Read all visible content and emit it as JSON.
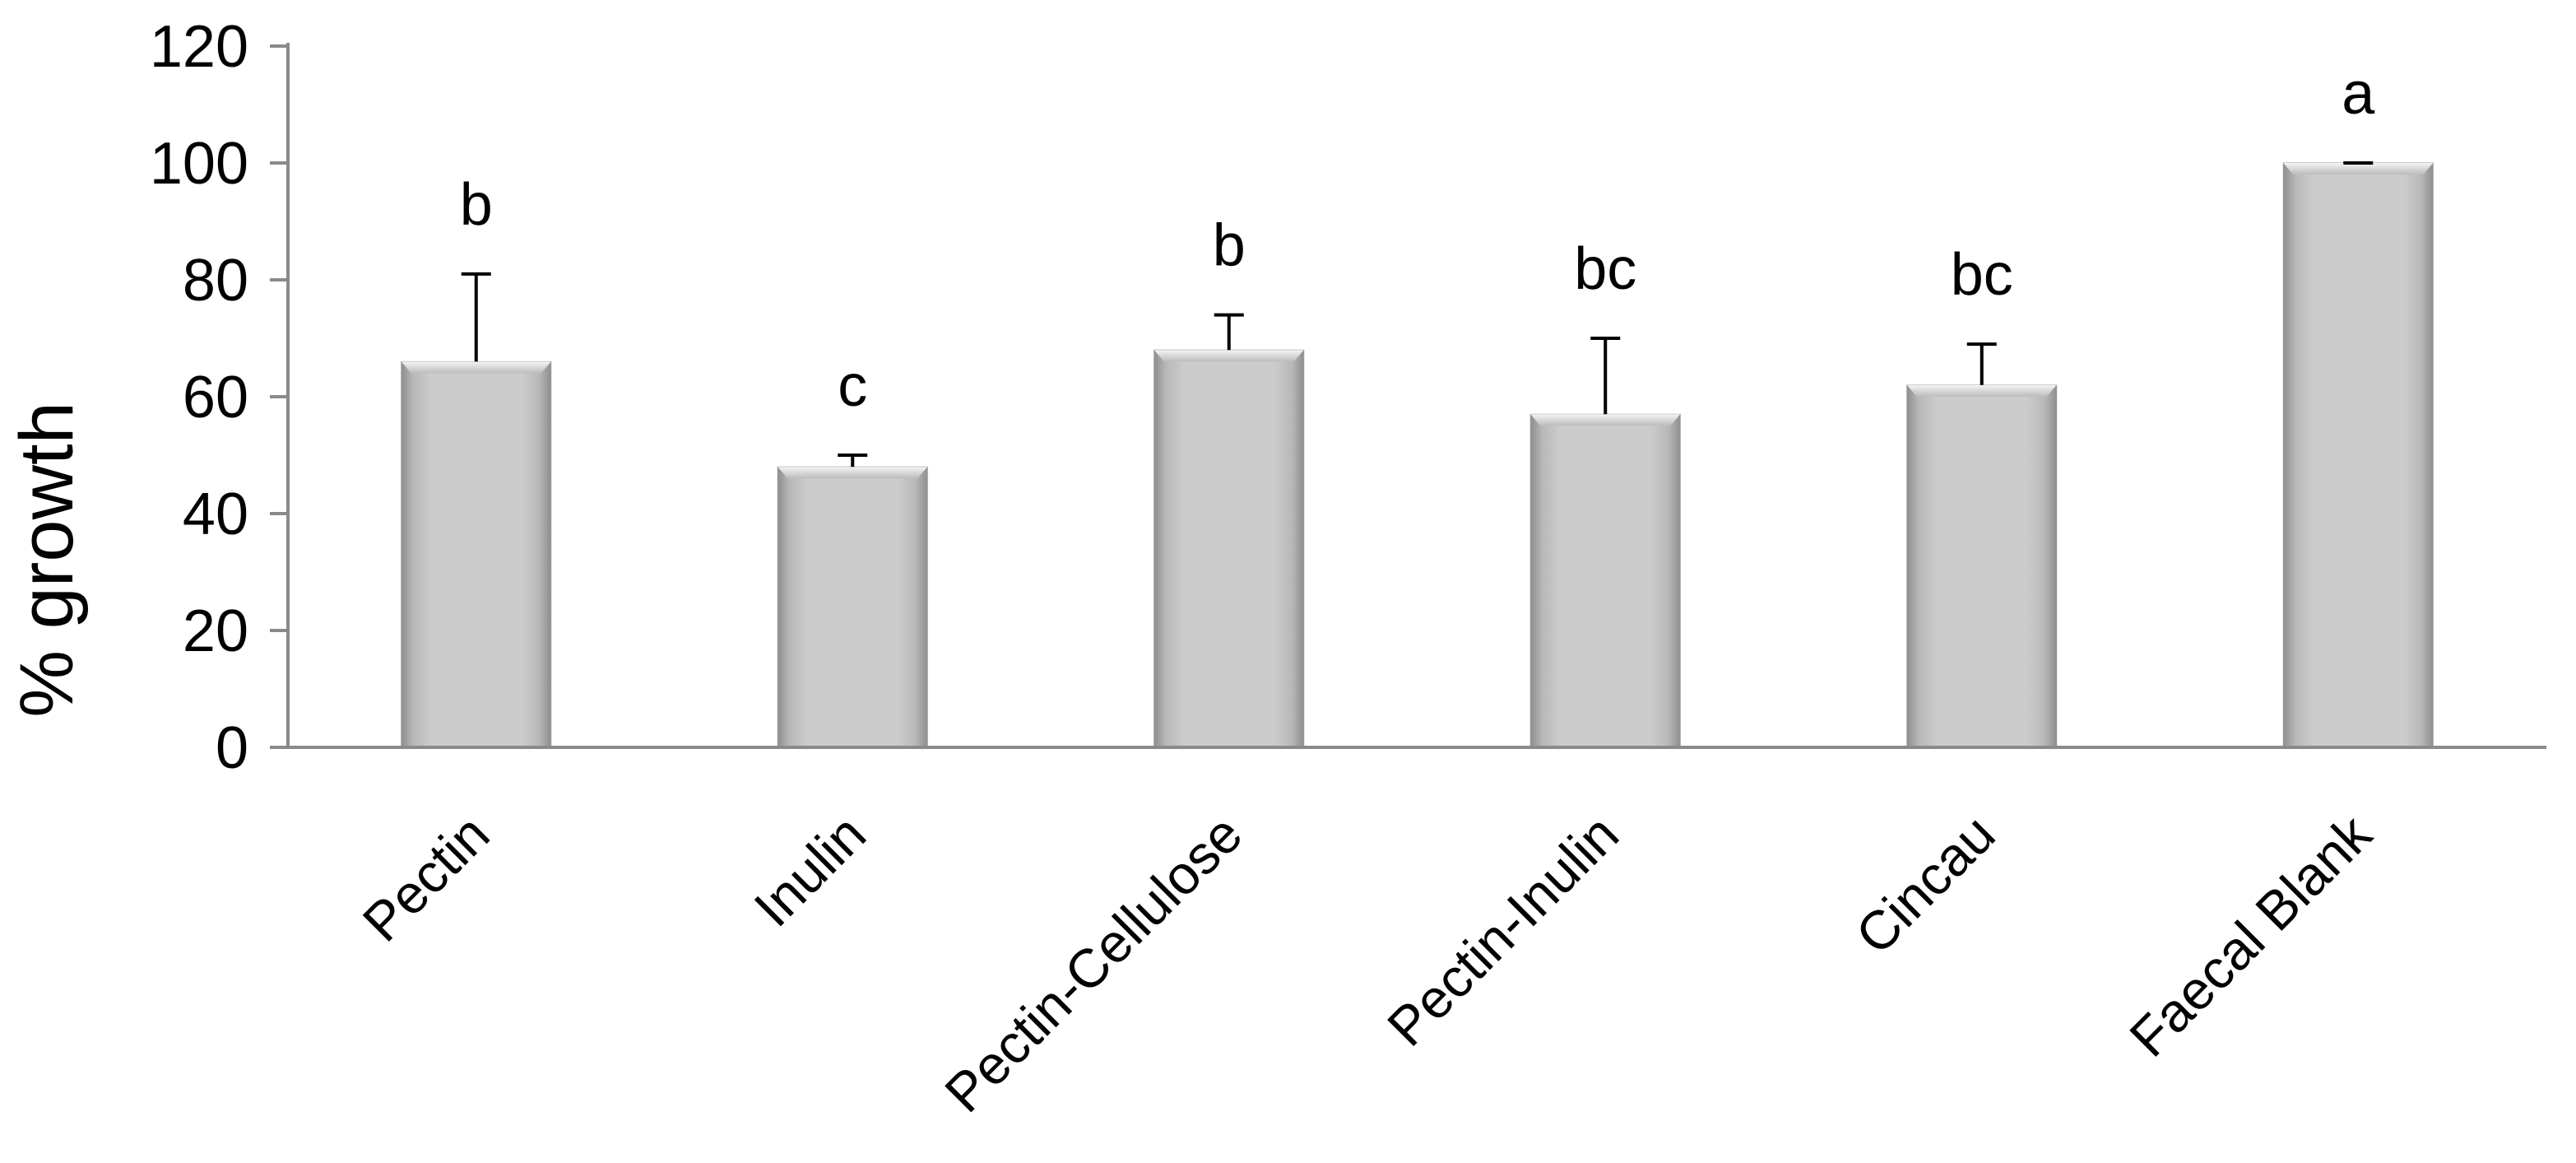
{
  "chart_data": {
    "type": "bar",
    "title": "",
    "xlabel": "",
    "ylabel": "% growth",
    "ylim": [
      0,
      120
    ],
    "yticks": [
      0,
      20,
      40,
      60,
      80,
      100,
      120
    ],
    "ytick_labels": [
      "0",
      "20",
      "40",
      "60",
      "80",
      "100",
      "120"
    ],
    "grid": false,
    "legend": "none",
    "categories": [
      "Pectin",
      "Inulin",
      "Pectin-Cellulose",
      "Pectin-Inulin",
      "Cincau",
      "Faecal Blank"
    ],
    "values": [
      66,
      48,
      68,
      57,
      62,
      100
    ],
    "errors": [
      15,
      2,
      6,
      13,
      7,
      0
    ],
    "significance_labels": [
      "b",
      "c",
      "b",
      "bc",
      "bc",
      "a"
    ],
    "bar_color": "#c8c8c8",
    "axis_color": "#8a8a8a"
  }
}
